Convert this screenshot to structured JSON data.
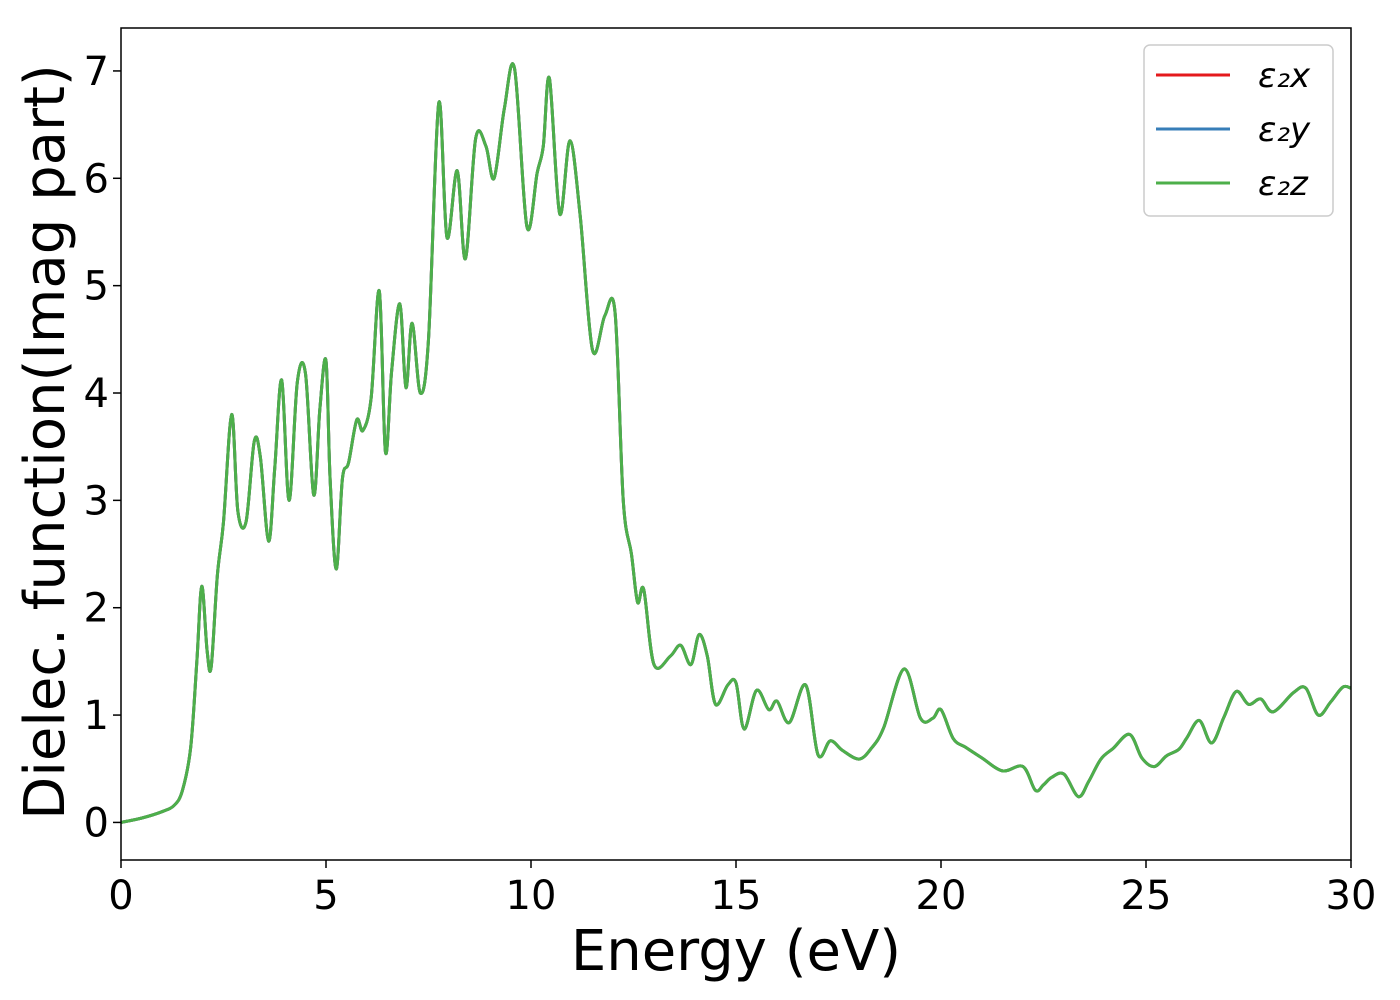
{
  "chart_data": {
    "type": "line",
    "title": "",
    "xlabel": "Energy (eV)",
    "ylabel": "Dielec. function(Imag part)",
    "xlim": [
      0,
      30
    ],
    "ylim": [
      -0.35,
      7.4
    ],
    "x_ticks": [
      0,
      5,
      10,
      15,
      20,
      25,
      30
    ],
    "y_ticks": [
      0,
      1,
      2,
      3,
      4,
      5,
      6,
      7
    ],
    "grid": false,
    "legend_position": "top-right",
    "series": [
      {
        "name": "ε₂x",
        "color": "#e41a1c",
        "x": [
          0,
          0.5,
          1.0,
          1.3,
          1.5,
          1.7,
          1.85,
          1.97,
          2.1,
          2.2,
          2.35,
          2.5,
          2.7,
          2.85,
          3.05,
          3.25,
          3.4,
          3.6,
          3.75,
          3.92,
          4.1,
          4.3,
          4.5,
          4.7,
          4.85,
          5.0,
          5.1,
          5.25,
          5.4,
          5.55,
          5.75,
          5.9,
          6.1,
          6.3,
          6.45,
          6.6,
          6.8,
          6.95,
          7.1,
          7.3,
          7.5,
          7.75,
          7.95,
          8.2,
          8.4,
          8.65,
          8.9,
          9.1,
          9.35,
          9.6,
          9.9,
          10.15,
          10.3,
          10.45,
          10.7,
          10.95,
          11.2,
          11.5,
          11.8,
          12.05,
          12.25,
          12.45,
          12.6,
          12.75,
          13.0,
          13.4,
          13.65,
          13.9,
          14.1,
          14.3,
          14.5,
          14.8,
          15.0,
          15.2,
          15.5,
          15.8,
          16.0,
          16.3,
          16.7,
          17.0,
          17.3,
          17.6,
          18.0,
          18.3,
          18.6,
          19.1,
          19.5,
          19.8,
          20.0,
          20.3,
          20.6,
          21.0,
          21.5,
          22.0,
          22.3,
          22.5,
          22.7,
          23.0,
          23.35,
          23.6,
          23.9,
          24.2,
          24.6,
          24.9,
          25.2,
          25.5,
          25.8,
          26.0,
          26.3,
          26.6,
          26.9,
          27.2,
          27.5,
          27.8,
          28.1,
          28.6,
          28.9,
          29.2,
          29.5,
          29.8,
          30.0
        ],
        "y": [
          0.0,
          0.04,
          0.1,
          0.16,
          0.3,
          0.7,
          1.5,
          2.2,
          1.6,
          1.45,
          2.3,
          2.8,
          3.8,
          2.9,
          2.8,
          3.55,
          3.4,
          2.62,
          3.3,
          4.12,
          3.0,
          4.1,
          4.18,
          3.05,
          3.85,
          4.3,
          3.2,
          2.36,
          3.2,
          3.35,
          3.75,
          3.65,
          3.95,
          4.95,
          3.45,
          4.2,
          4.83,
          4.05,
          4.65,
          4.0,
          4.5,
          6.7,
          5.45,
          6.07,
          5.25,
          6.37,
          6.3,
          6.0,
          6.65,
          7.02,
          5.55,
          6.05,
          6.3,
          6.93,
          5.67,
          6.35,
          5.65,
          4.4,
          4.72,
          4.75,
          3.0,
          2.5,
          2.05,
          2.17,
          1.47,
          1.55,
          1.65,
          1.47,
          1.75,
          1.55,
          1.1,
          1.28,
          1.3,
          0.87,
          1.23,
          1.05,
          1.13,
          0.93,
          1.28,
          0.63,
          0.76,
          0.67,
          0.59,
          0.69,
          0.88,
          1.43,
          0.97,
          0.97,
          1.05,
          0.78,
          0.7,
          0.6,
          0.48,
          0.52,
          0.3,
          0.35,
          0.42,
          0.45,
          0.24,
          0.38,
          0.59,
          0.69,
          0.82,
          0.6,
          0.52,
          0.62,
          0.68,
          0.79,
          0.95,
          0.74,
          0.98,
          1.22,
          1.1,
          1.15,
          1.03,
          1.21,
          1.25,
          1.0,
          1.12,
          1.26,
          1.25
        ]
      },
      {
        "name": "ε₂y",
        "color": "#377eb8",
        "x": [
          0,
          0.5,
          1.0,
          1.3,
          1.5,
          1.7,
          1.85,
          1.97,
          2.1,
          2.2,
          2.35,
          2.5,
          2.7,
          2.85,
          3.05,
          3.25,
          3.4,
          3.6,
          3.75,
          3.92,
          4.1,
          4.3,
          4.5,
          4.7,
          4.85,
          5.0,
          5.1,
          5.25,
          5.4,
          5.55,
          5.75,
          5.9,
          6.1,
          6.3,
          6.45,
          6.6,
          6.8,
          6.95,
          7.1,
          7.3,
          7.5,
          7.75,
          7.95,
          8.2,
          8.4,
          8.65,
          8.9,
          9.1,
          9.35,
          9.6,
          9.9,
          10.15,
          10.3,
          10.45,
          10.7,
          10.95,
          11.2,
          11.5,
          11.8,
          12.05,
          12.25,
          12.45,
          12.6,
          12.75,
          13.0,
          13.4,
          13.65,
          13.9,
          14.1,
          14.3,
          14.5,
          14.8,
          15.0,
          15.2,
          15.5,
          15.8,
          16.0,
          16.3,
          16.7,
          17.0,
          17.3,
          17.6,
          18.0,
          18.3,
          18.6,
          19.1,
          19.5,
          19.8,
          20.0,
          20.3,
          20.6,
          21.0,
          21.5,
          22.0,
          22.3,
          22.5,
          22.7,
          23.0,
          23.35,
          23.6,
          23.9,
          24.2,
          24.6,
          24.9,
          25.2,
          25.5,
          25.8,
          26.0,
          26.3,
          26.6,
          26.9,
          27.2,
          27.5,
          27.8,
          28.1,
          28.6,
          28.9,
          29.2,
          29.5,
          29.8,
          30.0
        ],
        "y": [
          0.0,
          0.04,
          0.1,
          0.16,
          0.3,
          0.7,
          1.5,
          2.2,
          1.6,
          1.45,
          2.3,
          2.8,
          3.8,
          2.9,
          2.8,
          3.55,
          3.4,
          2.62,
          3.3,
          4.12,
          3.0,
          4.1,
          4.18,
          3.05,
          3.85,
          4.3,
          3.2,
          2.36,
          3.2,
          3.35,
          3.75,
          3.65,
          3.95,
          4.95,
          3.45,
          4.2,
          4.83,
          4.05,
          4.65,
          4.0,
          4.5,
          6.7,
          5.45,
          6.07,
          5.25,
          6.37,
          6.3,
          6.0,
          6.65,
          7.02,
          5.55,
          6.05,
          6.3,
          6.93,
          5.67,
          6.35,
          5.65,
          4.4,
          4.72,
          4.75,
          3.0,
          2.5,
          2.05,
          2.17,
          1.47,
          1.55,
          1.65,
          1.47,
          1.75,
          1.55,
          1.1,
          1.28,
          1.3,
          0.87,
          1.23,
          1.05,
          1.13,
          0.93,
          1.28,
          0.63,
          0.76,
          0.67,
          0.59,
          0.69,
          0.88,
          1.43,
          0.97,
          0.97,
          1.05,
          0.78,
          0.7,
          0.6,
          0.48,
          0.52,
          0.3,
          0.35,
          0.42,
          0.45,
          0.24,
          0.38,
          0.59,
          0.69,
          0.82,
          0.6,
          0.52,
          0.62,
          0.68,
          0.79,
          0.95,
          0.74,
          0.98,
          1.22,
          1.1,
          1.15,
          1.03,
          1.21,
          1.25,
          1.0,
          1.12,
          1.26,
          1.25
        ]
      },
      {
        "name": "ε₂z",
        "color": "#4daf4a",
        "x": [
          0,
          0.5,
          1.0,
          1.3,
          1.5,
          1.7,
          1.85,
          1.97,
          2.1,
          2.2,
          2.35,
          2.5,
          2.7,
          2.85,
          3.05,
          3.25,
          3.4,
          3.6,
          3.75,
          3.92,
          4.1,
          4.3,
          4.5,
          4.7,
          4.85,
          5.0,
          5.1,
          5.25,
          5.4,
          5.55,
          5.75,
          5.9,
          6.1,
          6.3,
          6.45,
          6.6,
          6.8,
          6.95,
          7.1,
          7.3,
          7.5,
          7.75,
          7.95,
          8.2,
          8.4,
          8.65,
          8.9,
          9.1,
          9.35,
          9.6,
          9.9,
          10.15,
          10.3,
          10.45,
          10.7,
          10.95,
          11.2,
          11.5,
          11.8,
          12.05,
          12.25,
          12.45,
          12.6,
          12.75,
          13.0,
          13.4,
          13.65,
          13.9,
          14.1,
          14.3,
          14.5,
          14.8,
          15.0,
          15.2,
          15.5,
          15.8,
          16.0,
          16.3,
          16.7,
          17.0,
          17.3,
          17.6,
          18.0,
          18.3,
          18.6,
          19.1,
          19.5,
          19.8,
          20.0,
          20.3,
          20.6,
          21.0,
          21.5,
          22.0,
          22.3,
          22.5,
          22.7,
          23.0,
          23.35,
          23.6,
          23.9,
          24.2,
          24.6,
          24.9,
          25.2,
          25.5,
          25.8,
          26.0,
          26.3,
          26.6,
          26.9,
          27.2,
          27.5,
          27.8,
          28.1,
          28.6,
          28.9,
          29.2,
          29.5,
          29.8,
          30.0
        ],
        "y": [
          0.0,
          0.04,
          0.1,
          0.16,
          0.3,
          0.7,
          1.5,
          2.2,
          1.6,
          1.45,
          2.3,
          2.8,
          3.8,
          2.9,
          2.8,
          3.55,
          3.4,
          2.62,
          3.3,
          4.12,
          3.0,
          4.1,
          4.18,
          3.05,
          3.85,
          4.3,
          3.2,
          2.36,
          3.2,
          3.35,
          3.75,
          3.65,
          3.95,
          4.95,
          3.45,
          4.2,
          4.83,
          4.05,
          4.65,
          4.0,
          4.5,
          6.7,
          5.45,
          6.07,
          5.25,
          6.37,
          6.3,
          6.0,
          6.65,
          7.02,
          5.55,
          6.05,
          6.3,
          6.93,
          5.67,
          6.35,
          5.65,
          4.4,
          4.72,
          4.75,
          3.0,
          2.5,
          2.05,
          2.17,
          1.47,
          1.55,
          1.65,
          1.47,
          1.75,
          1.55,
          1.1,
          1.28,
          1.3,
          0.87,
          1.23,
          1.05,
          1.13,
          0.93,
          1.28,
          0.63,
          0.76,
          0.67,
          0.59,
          0.69,
          0.88,
          1.43,
          0.97,
          0.97,
          1.05,
          0.78,
          0.7,
          0.6,
          0.48,
          0.52,
          0.3,
          0.35,
          0.42,
          0.45,
          0.24,
          0.38,
          0.59,
          0.69,
          0.82,
          0.6,
          0.52,
          0.62,
          0.68,
          0.79,
          0.95,
          0.74,
          0.98,
          1.22,
          1.1,
          1.15,
          1.03,
          1.21,
          1.25,
          1.0,
          1.12,
          1.26,
          1.25
        ]
      }
    ]
  }
}
